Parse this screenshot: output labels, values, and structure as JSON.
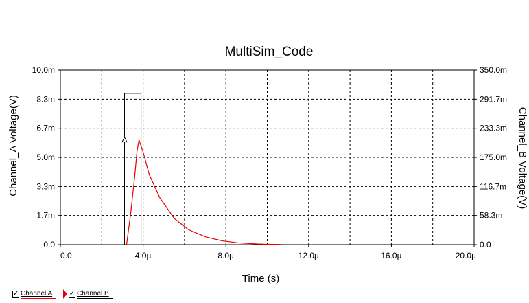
{
  "chart_data": {
    "type": "line",
    "title": "MultiSim_Code",
    "xlabel": "Time (s)",
    "ylabel": "Channel_A Voltage(V)",
    "y2label": "Channel_B Voltage(V)",
    "x_ticks": [
      "0.0",
      "4.0µ",
      "8.0µ",
      "12.0µ",
      "16.0µ",
      "20.0µ"
    ],
    "y_ticks": [
      "0.0",
      "1.7m",
      "3.3m",
      "5.0m",
      "6.7m",
      "8.3m",
      "10.0m"
    ],
    "y2_ticks": [
      "0.0",
      "58.3m",
      "116.7m",
      "175.0m",
      "233.3m",
      "291.7m",
      "350.0m"
    ],
    "xlim": [
      0,
      2e-05
    ],
    "ylim": [
      0,
      0.01
    ],
    "y2lim": [
      0,
      0.35
    ],
    "grid": true,
    "series": [
      {
        "name": "Channel A",
        "color": "#e30000",
        "axis": "left",
        "x": [
          3.2e-06,
          3.4e-06,
          3.6e-06,
          3.7e-06,
          3.8e-06,
          4e-06,
          4.3e-06,
          4.8e-06,
          5.5e-06,
          6.2e-06,
          7e-06,
          7.8e-06,
          8.6e-06,
          9.5e-06,
          1e-05,
          1.07e-05
        ],
        "y": [
          0.0,
          0.0018,
          0.004,
          0.0053,
          0.006,
          0.0053,
          0.004,
          0.0027,
          0.0015,
          0.00085,
          0.00045,
          0.00022,
          0.0001,
          4e-05,
          2e-05,
          1e-05
        ]
      },
      {
        "name": "Channel B",
        "color": "#000000",
        "axis": "right",
        "x": [
          3.1e-06,
          3.1e-06,
          3.9e-06,
          3.9e-06
        ],
        "y": [
          0.0,
          0.3033,
          0.3033,
          0.0
        ]
      }
    ],
    "cursor": {
      "x": 3.1e-06,
      "y": 0.006,
      "marker": "triangle"
    },
    "legend": {
      "placement": "bottom-left"
    }
  },
  "legend": {
    "channel_a": {
      "label": "Channel A",
      "checked": "✓",
      "color": "#e30000"
    },
    "channel_b": {
      "label": "Channel B",
      "checked": "✓",
      "color": "#000000"
    }
  }
}
